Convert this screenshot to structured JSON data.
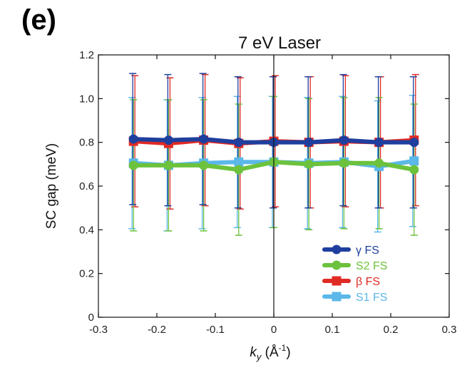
{
  "panel_label": "(e)",
  "chart_data": {
    "type": "line",
    "title": "7 eV Laser",
    "xlabel": "k",
    "xlabel_sub": "y",
    "xlabel_units": " (Å",
    "xlabel_exp": "-1",
    "xlabel_close": ")",
    "ylabel": "SC gap (meV)",
    "xlim": [
      -0.3,
      0.3
    ],
    "ylim": [
      0,
      1.2
    ],
    "xticks": [
      -0.3,
      -0.2,
      -0.1,
      0,
      0.1,
      0.2,
      0.3
    ],
    "xtick_labels": [
      "-0.3",
      "-0.2",
      "-0.1",
      "0",
      "0.1",
      "0.2",
      "0.3"
    ],
    "yticks": [
      0,
      0.2,
      0.4,
      0.6,
      0.8,
      1.0,
      1.2
    ],
    "ytick_labels": [
      "0",
      "0.2",
      "0.4",
      "0.6",
      "0.8",
      "1.0",
      "1.2"
    ],
    "x": [
      -0.24,
      -0.18,
      -0.12,
      -0.06,
      0,
      0.06,
      0.12,
      0.18,
      0.24
    ],
    "vline_x": 0,
    "legend_position": "bottom-right",
    "series": [
      {
        "name": "S1 FS",
        "marker": "square",
        "color": "#5bb8e8",
        "values": [
          0.705,
          0.695,
          0.705,
          0.71,
          0.71,
          0.705,
          0.71,
          0.69,
          0.715
        ],
        "error": 0.3
      },
      {
        "name": "β FS",
        "marker": "square",
        "color": "#e02a24",
        "values": [
          0.805,
          0.795,
          0.81,
          0.795,
          0.805,
          0.8,
          0.805,
          0.8,
          0.81
        ],
        "error": 0.3
      },
      {
        "name": "S2 FS",
        "marker": "circle",
        "color": "#6cc23c",
        "values": [
          0.695,
          0.695,
          0.695,
          0.675,
          0.71,
          0.7,
          0.705,
          0.705,
          0.675
        ],
        "error": 0.3
      },
      {
        "name": "γ FS",
        "marker": "circle",
        "color": "#1f3f9e",
        "values": [
          0.815,
          0.81,
          0.815,
          0.8,
          0.8,
          0.8,
          0.81,
          0.8,
          0.8
        ],
        "error": 0.3
      }
    ],
    "legend_order": [
      "γ FS",
      "S2 FS",
      "β FS",
      "S1 FS"
    ]
  }
}
